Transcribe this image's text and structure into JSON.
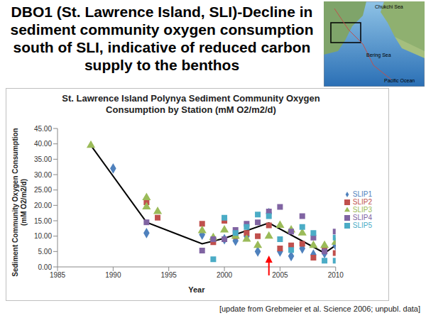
{
  "slide": {
    "title": "DBO1 (St. Lawrence Island, SLI)-Decline in sediment community oxygen consumption south of SLI, indicative of reduced carbon supply to the benthos",
    "source": "[update from Grebmeier et al. Science 2006; unpubl. data]",
    "map_labels": [
      "Chukchi Sea",
      "Bering Sea",
      "Pacific Ocean"
    ]
  },
  "chart_data": {
    "type": "scatter",
    "title": "St. Lawrence Island Polynya Sediment Community Oxygen Consumption  by Station (mM O2/m2/d)",
    "x_label": "Year",
    "y_label": "Sediment Community Oxygen Consumption (mM O2/m2/d)",
    "xlim": [
      1985,
      2010
    ],
    "xticks": [
      1985,
      1990,
      1995,
      2000,
      2005,
      2010
    ],
    "ylim": [
      0,
      45
    ],
    "yticks": [
      {
        "value": 0,
        "label": "0.00"
      },
      {
        "value": 5,
        "label": "5.00"
      },
      {
        "value": 10,
        "label": "10.00"
      },
      {
        "value": 15,
        "label": "15.00"
      },
      {
        "value": 20,
        "label": "20.00"
      },
      {
        "value": 25,
        "label": "25.00"
      },
      {
        "value": 30,
        "label": "30.00"
      },
      {
        "value": 35,
        "label": "35.00"
      },
      {
        "value": 40,
        "label": "40.00"
      },
      {
        "value": 45,
        "label": "45.00"
      }
    ],
    "grid": false,
    "legend": "right",
    "arrow": {
      "x": 2004,
      "color": "#ff0000"
    },
    "series": [
      {
        "name": "SLIP1",
        "color": "#4f81bd",
        "marker": "diamond",
        "x": [
          1990,
          1993,
          1998,
          2000,
          2001,
          2002,
          2003,
          2004,
          2005,
          2006,
          2007,
          2008,
          2009,
          2010
        ],
        "values": [
          32,
          11,
          10.5,
          9,
          8.5,
          10,
          5,
          17.5,
          5,
          3.5,
          6,
          4,
          4.5,
          7
        ]
      },
      {
        "name": "SLIP2",
        "color": "#c0504d",
        "marker": "square",
        "x": [
          1993,
          1994,
          1998,
          1999,
          2000,
          2001,
          2002,
          2003,
          2004,
          2005,
          2006,
          2007,
          2008,
          2009,
          2010
        ],
        "values": [
          21,
          16,
          14,
          8,
          15,
          10,
          11,
          10,
          13.5,
          6,
          7,
          7.5,
          3,
          6,
          4.5
        ]
      },
      {
        "name": "SLIP3",
        "color": "#9bbb59",
        "marker": "triangle",
        "x": [
          1988,
          1993,
          1993,
          1994,
          1998,
          1999,
          2000,
          2001,
          2002,
          2003,
          2004,
          2005,
          2006,
          2007,
          2008,
          2009,
          2010
        ],
        "values": [
          39.5,
          22.5,
          19.5,
          18,
          11.8,
          9.5,
          12,
          10,
          9,
          7,
          10,
          13.5,
          12,
          11,
          7,
          7,
          8
        ]
      },
      {
        "name": "SLIP4",
        "color": "#8064a2",
        "marker": "square",
        "x": [
          1993,
          1998,
          1999,
          2000,
          2001,
          2002,
          2003,
          2004,
          2005,
          2006,
          2007,
          2008,
          2009,
          2010
        ],
        "values": [
          14.5,
          5.3,
          9,
          9,
          12,
          14,
          14.5,
          18,
          19.5,
          11.5,
          16.5,
          9.5,
          5,
          11.5
        ]
      },
      {
        "name": "SLIP5",
        "color": "#4bacc6",
        "marker": "square",
        "x": [
          1999,
          2000,
          2001,
          2002,
          2003,
          2004,
          2005,
          2006,
          2007,
          2008,
          2009,
          2010,
          2010
        ],
        "values": [
          2.5,
          16,
          11,
          13,
          17,
          16.5,
          9,
          5.5,
          13,
          11,
          2,
          9.5,
          2
        ]
      },
      {
        "type": "line",
        "color": "#000000",
        "x": [
          1988,
          1993,
          1998,
          2000,
          2004,
          2009,
          2010
        ],
        "values": [
          39.5,
          14.5,
          7.5,
          9.3,
          14.3,
          4.5,
          7
        ]
      }
    ]
  }
}
